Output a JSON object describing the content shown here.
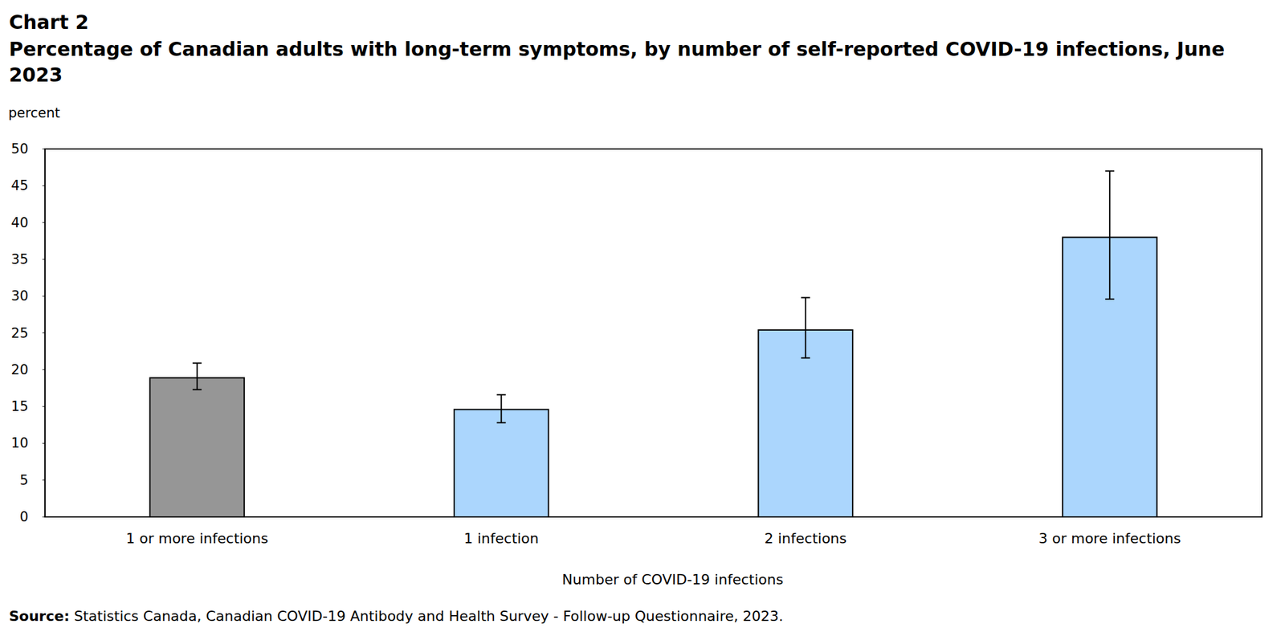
{
  "chart_data": {
    "type": "bar",
    "title": "Chart 2",
    "subtitle": "Percentage of Canadian adults with long-term symptoms, by number of self-reported COVID-19 infections, June 2023",
    "y_label": "percent",
    "x_label": "Number of COVID-19 infections",
    "source_label": "Source:",
    "source": "Statistics Canada, Canadian COVID-19 Antibody and Health Survey - Follow-up Questionnaire, 2023.",
    "categories": [
      "1 or more infections",
      "1 infection",
      "2 infections",
      "3 or more infections"
    ],
    "values": [
      18.9,
      14.6,
      25.4,
      38.0
    ],
    "error_low": [
      17.3,
      12.8,
      21.6,
      29.6
    ],
    "error_high": [
      20.9,
      16.6,
      29.8,
      47.0
    ],
    "colors": [
      "#969696",
      "#abd6fd",
      "#abd6fd",
      "#abd6fd"
    ],
    "ylim": [
      0,
      50
    ],
    "yticks": [
      0,
      5,
      10,
      15,
      20,
      25,
      30,
      35,
      40,
      45,
      50
    ],
    "grid": false
  }
}
